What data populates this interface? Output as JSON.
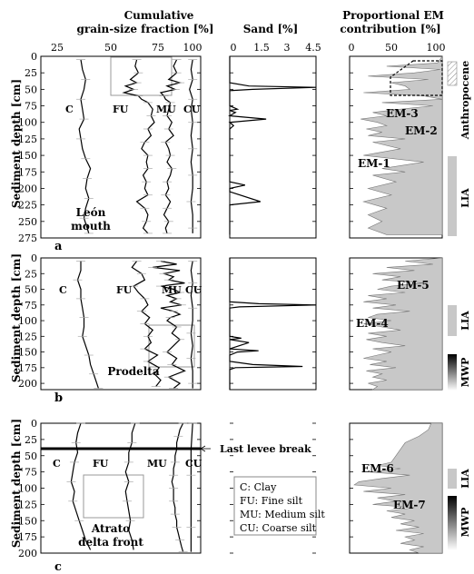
{
  "header": {
    "col1_title_line1": "Cumulative",
    "col1_title_line2": "grain-size fraction [%]",
    "col2_title": "Sand [%]",
    "col3_title_line1": "Proportional EM",
    "col3_title_line2": "contribution [%]"
  },
  "axes": {
    "y_label": "Sediment depth [cm]",
    "gs_ticks": [
      "25",
      "50",
      "75",
      "100"
    ],
    "sand_ticks": [
      "0",
      "1.5",
      "3",
      "4.5"
    ],
    "sand_tick_half": "1.5",
    "em_ticks": [
      "0",
      "50",
      "100"
    ]
  },
  "fraction_labels": {
    "clay": "C",
    "fine": "FU",
    "medium": "MU",
    "coarse": "CU"
  },
  "panels": [
    {
      "id": "a",
      "site_line1": "León",
      "site_line2": "mouth",
      "depth_ticks": [
        "0",
        "25",
        "50",
        "75",
        "100",
        "125",
        "150",
        "175",
        "200",
        "225",
        "250",
        "275"
      ],
      "em_labels": [
        "EM-3",
        "EM-2",
        "EM-1"
      ],
      "side_labels": [
        "Anthropocene",
        "LIA"
      ]
    },
    {
      "id": "b",
      "site_line1": "Prodelta",
      "site_line2": "",
      "depth_ticks": [
        "0",
        "25",
        "50",
        "75",
        "100",
        "125",
        "150",
        "175",
        "200"
      ],
      "em_labels": [
        "EM-5",
        "EM-4"
      ],
      "side_labels": [
        "LIA",
        "MWP"
      ]
    },
    {
      "id": "c",
      "site_line1": "Atrato",
      "site_line2": "delta front",
      "depth_ticks": [
        "0",
        "25",
        "50",
        "75",
        "100",
        "125",
        "150",
        "175",
        "200"
      ],
      "em_labels": [
        "EM-6",
        "EM-7"
      ],
      "side_labels": [
        "LIA",
        "MWP"
      ],
      "event_label": "Last levee break"
    }
  ],
  "legend": [
    "C: Clay",
    "FU: Fine silt",
    "MU: Medium silt",
    "CU: Coarse silt"
  ],
  "chart_data": [
    {
      "type": "line",
      "panel": "a",
      "title": "Cumulative grain-size fraction [%]",
      "xlabel": "Cumulative grain-size fraction [%]",
      "ylabel": "Sediment depth [cm]",
      "xlim": [
        5,
        105
      ],
      "ylim": [
        275,
        0
      ],
      "series": [
        {
          "depth": [
            5,
            20,
            35,
            50,
            65,
            80,
            95,
            110,
            125,
            140,
            155,
            170,
            185,
            200,
            215,
            230,
            245,
            260,
            268
          ],
          "values": [
            30,
            31,
            33,
            32,
            30,
            31,
            32,
            29,
            30,
            31,
            33,
            36,
            34,
            33,
            35,
            33,
            32,
            34,
            35
          ]
        },
        {
          "depth": [
            5,
            15,
            25,
            35,
            40,
            45,
            50,
            55,
            60,
            65,
            70,
            80,
            90,
            100,
            110,
            120,
            130,
            140,
            150,
            160,
            170,
            180,
            190,
            200,
            210,
            220,
            230,
            240,
            250,
            260,
            268
          ],
          "values": [
            65,
            64,
            66,
            61,
            65,
            58,
            63,
            57,
            66,
            68,
            72,
            75,
            74,
            76,
            72,
            74,
            70,
            68,
            72,
            71,
            72,
            69,
            71,
            70,
            72,
            65,
            70,
            72,
            71,
            69,
            72
          ]
        },
        {
          "depth": [
            5,
            15,
            25,
            35,
            40,
            45,
            50,
            55,
            60,
            65,
            70,
            80,
            90,
            100,
            110,
            120,
            130,
            140,
            150,
            160,
            170,
            180,
            190,
            200,
            210,
            220,
            230,
            240,
            250,
            260,
            268
          ],
          "values": [
            90,
            88,
            90,
            85,
            92,
            84,
            89,
            80,
            82,
            83,
            86,
            85,
            84,
            87,
            85,
            88,
            83,
            85,
            86,
            84,
            87,
            86,
            84,
            85,
            83,
            86,
            84,
            82,
            85,
            83,
            84
          ]
        },
        {
          "depth": [
            5,
            20,
            35,
            50,
            65,
            80,
            100,
            120,
            140,
            160,
            180,
            200,
            220,
            240,
            260,
            268
          ],
          "values": [
            100,
            99,
            100,
            98,
            100,
            99,
            100,
            99,
            100,
            99,
            100,
            100,
            99,
            100,
            100,
            100
          ]
        }
      ]
    },
    {
      "type": "line",
      "panel": "a",
      "xlabel": "Sand [%]",
      "xlim": [
        0,
        4.5
      ],
      "ylim": [
        275,
        0
      ],
      "series": [
        {
          "depth": [
            0,
            40,
            45,
            47,
            50,
            52,
            60,
            75,
            80,
            82,
            85,
            90,
            95,
            100,
            105,
            110,
            190,
            195,
            200,
            205,
            220,
            225,
            230,
            240,
            270
          ],
          "values": [
            0,
            0,
            1.0,
            4.5,
            1.2,
            0,
            0,
            0,
            0.4,
            0,
            0.3,
            0,
            1.9,
            0,
            0.2,
            0,
            0,
            0.8,
            0,
            0,
            1.6,
            0,
            0,
            0,
            0
          ]
        }
      ]
    },
    {
      "type": "area",
      "panel": "a",
      "xlabel": "Proportional EM contribution [%]",
      "xlim": [
        0,
        100
      ],
      "ylim": [
        275,
        0
      ],
      "series": [
        {
          "depth": [
            0,
            10,
            15,
            20,
            25,
            30,
            35,
            40,
            45,
            50,
            55,
            60,
            65,
            70,
            75,
            80,
            85,
            90,
            95,
            100,
            105,
            110,
            115,
            120,
            125,
            130,
            140,
            150,
            160,
            170,
            175,
            180,
            190,
            200,
            210,
            220,
            230,
            240,
            250,
            260,
            270
          ],
          "values": [
            100,
            95,
            40,
            98,
            70,
            20,
            85,
            45,
            60,
            65,
            15,
            80,
            100,
            35,
            90,
            55,
            25,
            40,
            12,
            30,
            40,
            18,
            35,
            20,
            60,
            25,
            55,
            15,
            80,
            35,
            60,
            25,
            50,
            20,
            45,
            15,
            40,
            20,
            35,
            20,
            40
          ]
        }
      ]
    },
    {
      "type": "line",
      "panel": "b",
      "xlabel": "Cumulative grain-size fraction [%]",
      "ylabel": "Sediment depth [cm]",
      "xlim": [
        5,
        105
      ],
      "ylim": [
        210,
        0
      ],
      "series": [
        {
          "depth": [
            5,
            20,
            35,
            50,
            65,
            80,
            95,
            110,
            125,
            140,
            155,
            170,
            185,
            200,
            208
          ],
          "values": [
            30,
            30,
            28,
            30,
            30,
            31,
            32,
            32,
            31,
            33,
            35,
            36,
            38,
            40,
            41
          ]
        },
        {
          "depth": [
            5,
            15,
            25,
            35,
            45,
            55,
            65,
            75,
            85,
            95,
            105,
            115,
            125,
            135,
            145,
            155,
            165,
            175,
            185,
            195,
            205
          ],
          "values": [
            65,
            62,
            68,
            70,
            63,
            66,
            70,
            72,
            68,
            73,
            70,
            75,
            72,
            74,
            70,
            78,
            72,
            79,
            76,
            80,
            77
          ]
        },
        {
          "depth": [
            5,
            10,
            15,
            20,
            25,
            30,
            35,
            40,
            45,
            50,
            55,
            60,
            65,
            70,
            75,
            80,
            85,
            90,
            95,
            100,
            110,
            120,
            130,
            140,
            150,
            160,
            170,
            180,
            190,
            200,
            208
          ],
          "values": [
            80,
            90,
            75,
            92,
            82,
            88,
            85,
            95,
            80,
            88,
            92,
            84,
            90,
            86,
            93,
            80,
            88,
            92,
            86,
            84,
            90,
            87,
            92,
            88,
            84,
            90,
            87,
            95,
            85,
            92,
            88
          ]
        },
        {
          "depth": [
            5,
            20,
            40,
            60,
            80,
            100,
            120,
            140,
            160,
            180,
            200,
            208
          ],
          "values": [
            100,
            99,
            100,
            99,
            100,
            100,
            99,
            100,
            99,
            100,
            100,
            100
          ]
        }
      ]
    },
    {
      "type": "line",
      "panel": "b",
      "xlabel": "Sand [%]",
      "xlim": [
        0,
        4.5
      ],
      "ylim": [
        210,
        0
      ],
      "series": [
        {
          "depth": [
            0,
            70,
            73,
            75,
            78,
            80,
            110,
            125,
            128,
            130,
            135,
            145,
            148,
            150,
            155,
            165,
            170,
            173,
            175,
            178,
            180,
            210
          ],
          "values": [
            0,
            0,
            1.5,
            4.5,
            0.5,
            0,
            0,
            0,
            0.6,
            0,
            1.0,
            0,
            1.5,
            0.4,
            0,
            0,
            1.2,
            3.8,
            0.3,
            0,
            0,
            0
          ]
        }
      ]
    },
    {
      "type": "area",
      "panel": "b",
      "xlabel": "Proportional EM contribution [%]",
      "xlim": [
        0,
        100
      ],
      "ylim": [
        210,
        0
      ],
      "series": [
        {
          "depth": [
            0,
            5,
            10,
            15,
            20,
            25,
            30,
            35,
            40,
            45,
            50,
            55,
            60,
            65,
            70,
            75,
            80,
            85,
            90,
            95,
            100,
            105,
            110,
            115,
            120,
            125,
            130,
            135,
            140,
            145,
            150,
            155,
            160,
            165,
            170,
            175,
            180,
            185,
            190,
            195,
            200,
            205,
            210
          ],
          "values": [
            100,
            60,
            90,
            40,
            70,
            25,
            55,
            35,
            80,
            45,
            30,
            60,
            20,
            40,
            15,
            50,
            25,
            65,
            30,
            20,
            45,
            15,
            35,
            55,
            20,
            40,
            18,
            35,
            60,
            25,
            45,
            30,
            15,
            40,
            22,
            50,
            18,
            35,
            25,
            40,
            20,
            30,
            25
          ]
        }
      ]
    },
    {
      "type": "line",
      "panel": "c",
      "xlabel": "Cumulative grain-size fraction [%]",
      "ylabel": "Sediment depth [cm]",
      "xlim": [
        5,
        105
      ],
      "ylim": [
        200,
        0
      ],
      "series": [
        {
          "depth": [
            0,
            15,
            30,
            45,
            60,
            75,
            90,
            105,
            120,
            135,
            150,
            165,
            180,
            195
          ],
          "values": [
            30,
            28,
            27,
            28,
            26,
            25,
            24,
            26,
            25,
            27,
            29,
            31,
            33,
            36
          ]
        },
        {
          "depth": [
            0,
            15,
            30,
            45,
            60,
            75,
            90,
            105,
            120,
            135,
            150,
            165,
            180,
            195
          ],
          "values": [
            64,
            62,
            62,
            60,
            60,
            58,
            60,
            58,
            59,
            60,
            61,
            60,
            62,
            63
          ]
        },
        {
          "depth": [
            0,
            10,
            20,
            30,
            40,
            50,
            60,
            70,
            80,
            90,
            100,
            110,
            120,
            130,
            140,
            150,
            160,
            170,
            180,
            190,
            198
          ],
          "values": [
            94,
            92,
            91,
            90,
            90,
            89,
            89,
            88,
            88,
            87,
            88,
            88,
            88,
            89,
            89,
            90,
            90,
            91,
            92,
            93,
            94
          ]
        },
        {
          "depth": [
            0,
            40,
            80,
            120,
            160,
            198
          ],
          "values": [
            100,
            99,
            99,
            99,
            99,
            99
          ]
        }
      ]
    },
    {
      "type": "area",
      "panel": "c",
      "xlabel": "Proportional EM contribution [%]",
      "xlim": [
        0,
        100
      ],
      "ylim": [
        200,
        0
      ],
      "series": [
        {
          "depth": [
            0,
            10,
            20,
            30,
            40,
            50,
            60,
            65,
            70,
            75,
            80,
            85,
            90,
            95,
            100,
            105,
            110,
            115,
            120,
            125,
            130,
            135,
            140,
            145,
            150,
            155,
            160,
            165,
            170,
            175,
            180,
            185,
            190,
            195,
            200
          ],
          "values": [
            88,
            85,
            75,
            60,
            55,
            50,
            45,
            30,
            55,
            20,
            65,
            35,
            10,
            5,
            45,
            15,
            60,
            30,
            50,
            25,
            70,
            40,
            60,
            45,
            70,
            55,
            75,
            50,
            80,
            60,
            70,
            55,
            80,
            65,
            75
          ]
        }
      ]
    }
  ]
}
